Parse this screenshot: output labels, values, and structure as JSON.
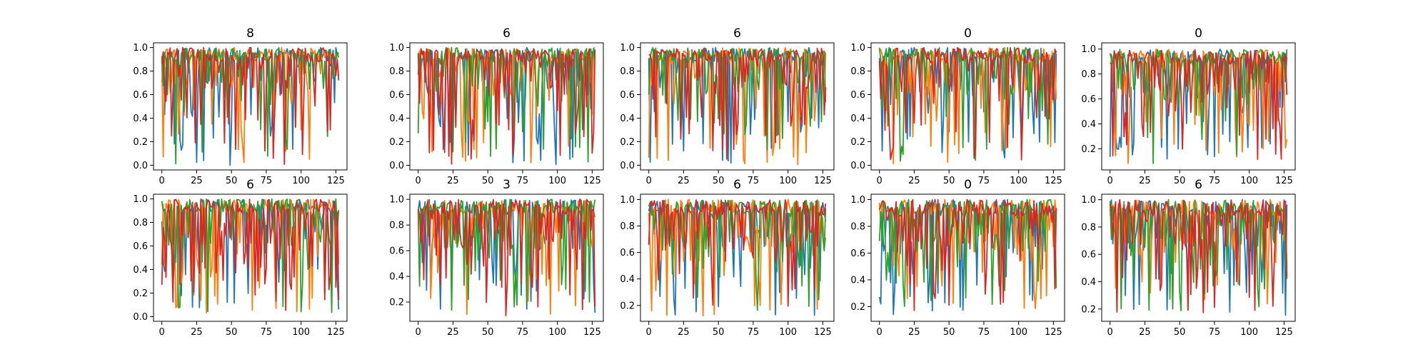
{
  "chart_data": [
    {
      "type": "line",
      "title": "8",
      "xlim": [
        -6,
        133
      ],
      "ylim": [
        -0.04,
        1.04
      ],
      "xticks": [
        0,
        25,
        50,
        75,
        100,
        125
      ],
      "yticks": [
        0.0,
        0.2,
        0.4,
        0.6,
        0.8,
        1.0
      ],
      "grid": false,
      "minY": 0.0,
      "seed": 11,
      "series": [
        {
          "color": "#1f77b4",
          "values": []
        },
        {
          "color": "#ff7f0e",
          "values": []
        },
        {
          "color": "#2ca02c",
          "values": []
        },
        {
          "color": "#d62728",
          "values": []
        }
      ]
    },
    {
      "type": "line",
      "title": "6",
      "xlim": [
        -6,
        133
      ],
      "ylim": [
        -0.04,
        1.04
      ],
      "xticks": [
        0,
        25,
        50,
        75,
        100,
        125
      ],
      "yticks": [
        0.0,
        0.2,
        0.4,
        0.6,
        0.8,
        1.0
      ],
      "grid": false,
      "minY": 0.0,
      "seed": 23,
      "series": [
        {
          "color": "#1f77b4",
          "values": []
        },
        {
          "color": "#ff7f0e",
          "values": []
        },
        {
          "color": "#2ca02c",
          "values": []
        },
        {
          "color": "#d62728",
          "values": []
        }
      ]
    },
    {
      "type": "line",
      "title": "6",
      "xlim": [
        -6,
        133
      ],
      "ylim": [
        -0.04,
        1.04
      ],
      "xticks": [
        0,
        25,
        50,
        75,
        100,
        125
      ],
      "yticks": [
        0.0,
        0.2,
        0.4,
        0.6,
        0.8,
        1.0
      ],
      "grid": false,
      "minY": 0.0,
      "seed": 37,
      "series": [
        {
          "color": "#1f77b4",
          "values": []
        },
        {
          "color": "#ff7f0e",
          "values": []
        },
        {
          "color": "#2ca02c",
          "values": []
        },
        {
          "color": "#d62728",
          "values": []
        }
      ]
    },
    {
      "type": "line",
      "title": "0",
      "xlim": [
        -6,
        133
      ],
      "ylim": [
        -0.04,
        1.04
      ],
      "xticks": [
        0,
        25,
        50,
        75,
        100,
        125
      ],
      "yticks": [
        0.0,
        0.2,
        0.4,
        0.6,
        0.8,
        1.0
      ],
      "grid": false,
      "minY": 0.0,
      "seed": 41,
      "series": [
        {
          "color": "#1f77b4",
          "values": []
        },
        {
          "color": "#ff7f0e",
          "values": []
        },
        {
          "color": "#2ca02c",
          "values": []
        },
        {
          "color": "#d62728",
          "values": []
        }
      ]
    },
    {
      "type": "line",
      "title": "0",
      "xlim": [
        -6,
        133
      ],
      "ylim": [
        0.03,
        1.05
      ],
      "xticks": [
        0,
        25,
        50,
        75,
        100,
        125
      ],
      "yticks": [
        0.2,
        0.4,
        0.6,
        0.8,
        1.0
      ],
      "grid": false,
      "minY": 0.07,
      "seed": 53,
      "series": [
        {
          "color": "#1f77b4",
          "values": []
        },
        {
          "color": "#ff7f0e",
          "values": []
        },
        {
          "color": "#2ca02c",
          "values": []
        },
        {
          "color": "#d62728",
          "values": []
        }
      ]
    },
    {
      "type": "line",
      "title": "6",
      "xlim": [
        -6,
        133
      ],
      "ylim": [
        -0.04,
        1.04
      ],
      "xticks": [
        0,
        25,
        50,
        75,
        100,
        125
      ],
      "yticks": [
        0.0,
        0.2,
        0.4,
        0.6,
        0.8,
        1.0
      ],
      "grid": false,
      "minY": 0.03,
      "seed": 67,
      "series": [
        {
          "color": "#1f77b4",
          "values": []
        },
        {
          "color": "#ff7f0e",
          "values": []
        },
        {
          "color": "#2ca02c",
          "values": []
        },
        {
          "color": "#d62728",
          "values": []
        }
      ]
    },
    {
      "type": "line",
      "title": "3",
      "xlim": [
        -6,
        133
      ],
      "ylim": [
        0.05,
        1.04
      ],
      "xticks": [
        0,
        25,
        50,
        75,
        100,
        125
      ],
      "yticks": [
        0.2,
        0.4,
        0.6,
        0.8,
        1.0
      ],
      "grid": false,
      "minY": 0.09,
      "seed": 79,
      "series": [
        {
          "color": "#1f77b4",
          "values": []
        },
        {
          "color": "#ff7f0e",
          "values": []
        },
        {
          "color": "#2ca02c",
          "values": []
        },
        {
          "color": "#d62728",
          "values": []
        }
      ]
    },
    {
      "type": "line",
      "title": "6",
      "xlim": [
        -6,
        133
      ],
      "ylim": [
        0.08,
        1.04
      ],
      "xticks": [
        0,
        25,
        50,
        75,
        100,
        125
      ],
      "yticks": [
        0.2,
        0.4,
        0.6,
        0.8,
        1.0
      ],
      "grid": false,
      "minY": 0.12,
      "seed": 83,
      "series": [
        {
          "color": "#1f77b4",
          "values": []
        },
        {
          "color": "#ff7f0e",
          "values": []
        },
        {
          "color": "#2ca02c",
          "values": []
        },
        {
          "color": "#d62728",
          "values": []
        }
      ]
    },
    {
      "type": "line",
      "title": "0",
      "xlim": [
        -6,
        133
      ],
      "ylim": [
        0.09,
        1.04
      ],
      "xticks": [
        0,
        25,
        50,
        75,
        100,
        125
      ],
      "yticks": [
        0.2,
        0.4,
        0.6,
        0.8,
        1.0
      ],
      "grid": false,
      "minY": 0.13,
      "seed": 97,
      "series": [
        {
          "color": "#1f77b4",
          "values": []
        },
        {
          "color": "#ff7f0e",
          "values": []
        },
        {
          "color": "#2ca02c",
          "values": []
        },
        {
          "color": "#d62728",
          "values": []
        }
      ]
    },
    {
      "type": "line",
      "title": "6",
      "xlim": [
        -6,
        133
      ],
      "ylim": [
        0.11,
        1.04
      ],
      "xticks": [
        0,
        25,
        50,
        75,
        100,
        125
      ],
      "yticks": [
        0.2,
        0.4,
        0.6,
        0.8,
        1.0
      ],
      "grid": false,
      "minY": 0.15,
      "seed": 101,
      "series": [
        {
          "color": "#1f77b4",
          "values": []
        },
        {
          "color": "#ff7f0e",
          "values": []
        },
        {
          "color": "#2ca02c",
          "values": []
        },
        {
          "color": "#d62728",
          "values": []
        }
      ]
    }
  ]
}
